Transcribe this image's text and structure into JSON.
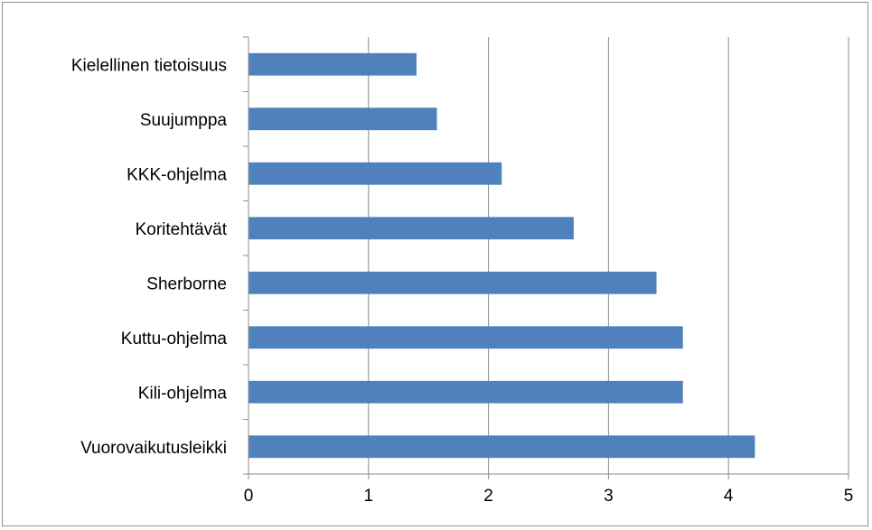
{
  "chart_data": {
    "type": "bar",
    "orientation": "horizontal",
    "categories": [
      "Kielellinen tietoisuus",
      "Suujumppa",
      "KKK-ohjelma",
      "Koritehtävät",
      "Sherborne",
      "Kuttu-ohjelma",
      "Kili-ohjelma",
      "Vuorovaikutusleikki"
    ],
    "values": [
      1.4,
      1.57,
      2.11,
      2.71,
      3.4,
      3.62,
      3.62,
      4.22
    ],
    "title": "",
    "xlabel": "",
    "ylabel": "",
    "xlim": [
      0,
      5
    ],
    "xticks": [
      "0",
      "1",
      "2",
      "3",
      "4",
      "5"
    ],
    "grid": "vertical",
    "legend": "none",
    "bar_color": "#4f81bd",
    "grid_color": "#8c8c8c"
  }
}
